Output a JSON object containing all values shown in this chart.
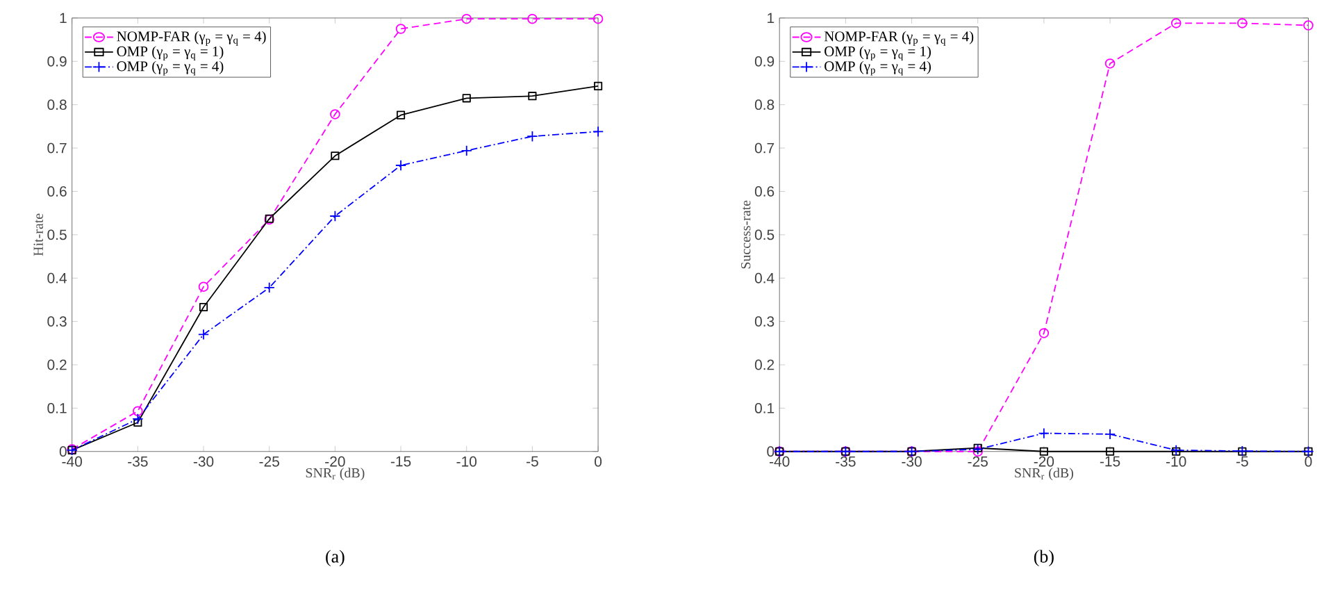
{
  "chart_data": [
    {
      "type": "line",
      "xlabel": "SNR$_{r}$ (dB)",
      "ylabel": "Hit-rate",
      "annotations": [
        "(a)"
      ],
      "x": [
        -40,
        -35,
        -30,
        -25,
        -20,
        -15,
        -10,
        -5,
        0
      ],
      "xlim": [
        -40,
        0
      ],
      "ylim": [
        0,
        1
      ],
      "xticks": [
        -40,
        -35,
        -30,
        -25,
        -20,
        -15,
        -10,
        -5,
        0
      ],
      "yticks": [
        0,
        0.1,
        0.2,
        0.3,
        0.4,
        0.5,
        0.6,
        0.7,
        0.8,
        0.9,
        1
      ],
      "grid": false,
      "legend": "top left",
      "series": [
        {
          "name": "NOMP-FAR (γ$_{p}$ = γ$_{q}$ = 4)",
          "color": "#ff00ff",
          "marker": "circle",
          "line_style": "dashed",
          "values": [
            0.005,
            0.093,
            0.38,
            0.535,
            0.778,
            0.975,
            0.998,
            0.998,
            0.998
          ]
        },
        {
          "name": "OMP (γ$_{p}$ = γ$_{q}$ = 1)",
          "color": "#000000",
          "marker": "square",
          "line_style": "solid",
          "values": [
            0.003,
            0.067,
            0.333,
            0.537,
            0.682,
            0.776,
            0.815,
            0.82,
            0.843
          ]
        },
        {
          "name": "OMP (γ$_{p}$ = γ$_{q}$ = 4)",
          "color": "#0000ff",
          "marker": "cross",
          "line_style": "dashdot",
          "values": [
            0.003,
            0.075,
            0.27,
            0.378,
            0.543,
            0.66,
            0.694,
            0.727,
            0.738
          ]
        }
      ]
    },
    {
      "type": "line",
      "xlabel": "SNR$_{r}$ (dB)",
      "ylabel": "Success-rate",
      "annotations": [
        "(b)"
      ],
      "x": [
        -40,
        -35,
        -30,
        -25,
        -20,
        -15,
        -10,
        -5,
        0
      ],
      "xlim": [
        -40,
        0
      ],
      "ylim": [
        0,
        1
      ],
      "xticks": [
        -40,
        -35,
        -30,
        -25,
        -20,
        -15,
        -10,
        -5,
        0
      ],
      "yticks": [
        0,
        0.1,
        0.2,
        0.3,
        0.4,
        0.5,
        0.6,
        0.7,
        0.8,
        0.9,
        1
      ],
      "grid": false,
      "legend": "top left",
      "series": [
        {
          "name": "NOMP-FAR (γ$_{p}$ = γ$_{q}$ = 4)",
          "color": "#ff00ff",
          "marker": "circle",
          "line_style": "dashed",
          "values": [
            0,
            0,
            0,
            0,
            0.273,
            0.895,
            0.988,
            0.988,
            0.983
          ]
        },
        {
          "name": "OMP (γ$_{p}$ = γ$_{q}$ = 1)",
          "color": "#000000",
          "marker": "square",
          "line_style": "solid",
          "values": [
            0,
            0,
            0,
            0.008,
            0,
            0,
            0,
            0,
            0
          ]
        },
        {
          "name": "OMP (γ$_{p}$ = γ$_{q}$ = 4)",
          "color": "#0000ff",
          "marker": "cross",
          "line_style": "dashdot",
          "values": [
            0,
            0,
            0,
            0.005,
            0.042,
            0.04,
            0.003,
            0.001,
            0
          ]
        }
      ]
    }
  ]
}
